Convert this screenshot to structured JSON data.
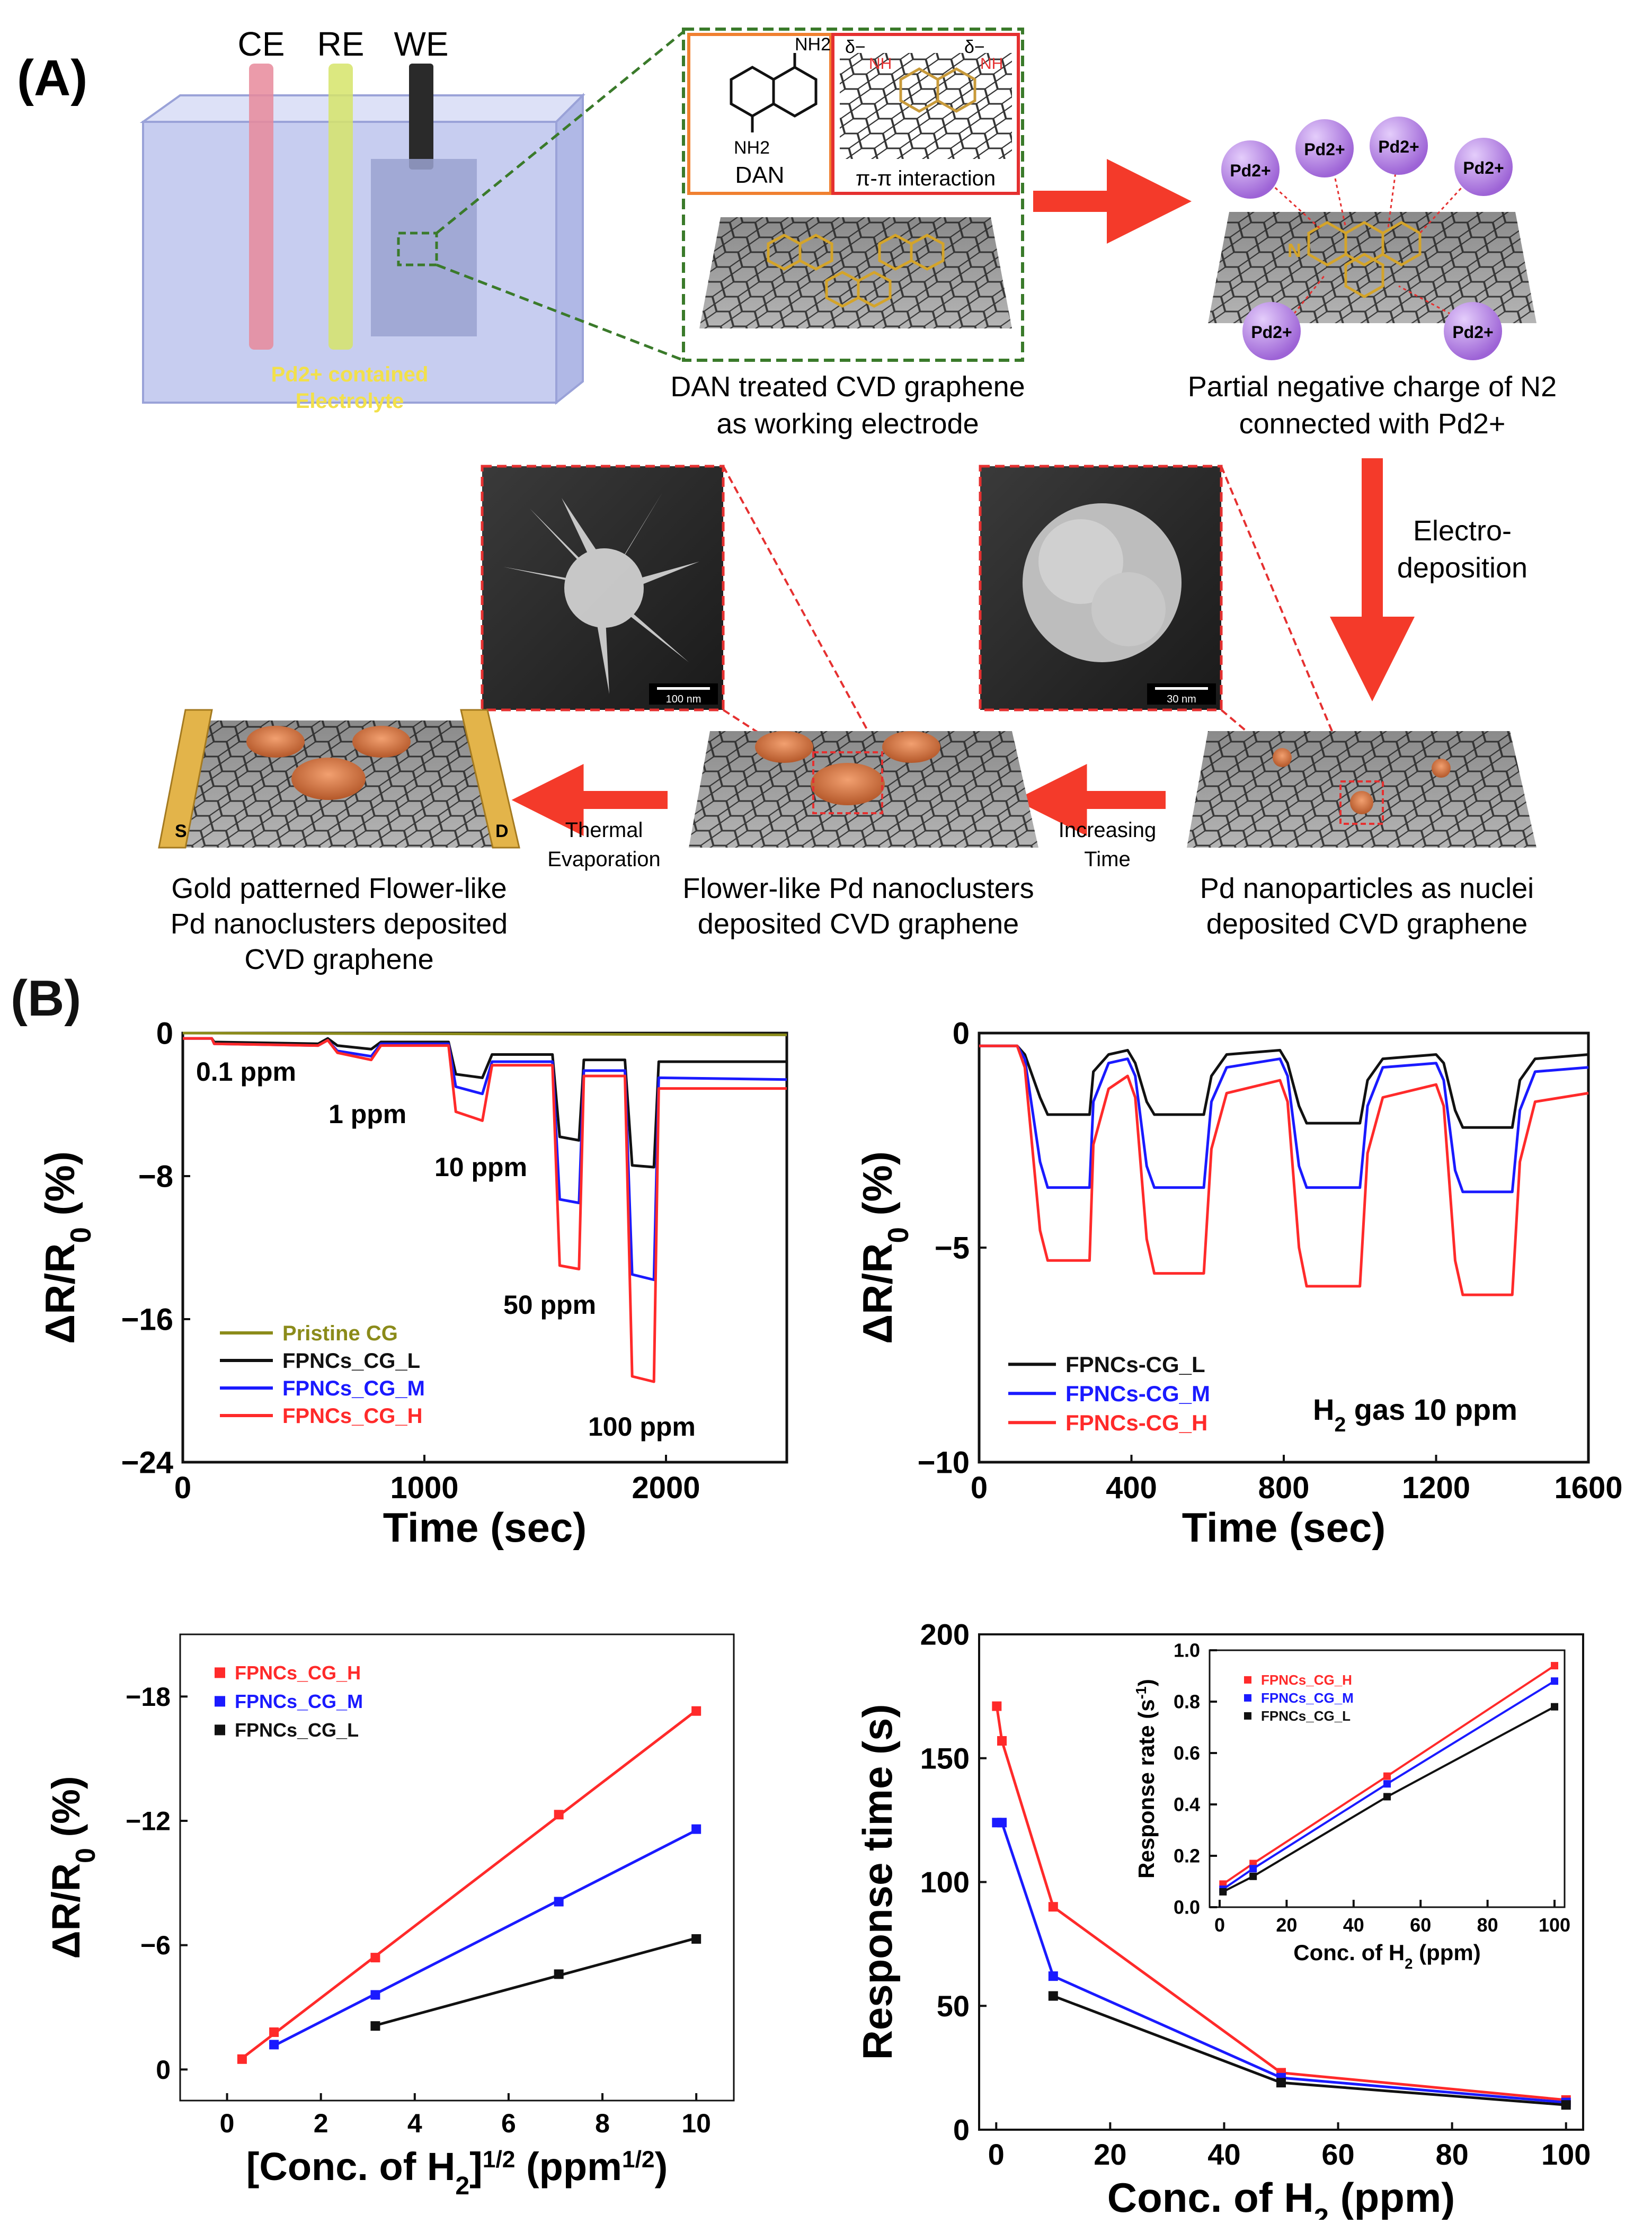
{
  "panel_a": {
    "label": "(A)",
    "cell": {
      "electrodes": [
        "CE",
        "RE",
        "WE"
      ],
      "electrolyte_line1": "Pd2+ contained",
      "electrolyte_line2": "Electrolyte"
    },
    "dan": {
      "molecule_label": "DAN",
      "nh2_label": "NH2",
      "interaction_label": "π-π interaction",
      "delta_label": "δ−",
      "nh_label": "NH"
    },
    "pd_ion_label": "Pd2+",
    "n_label": "N",
    "captions": {
      "dan_graphene_line1": "DAN treated CVD graphene",
      "dan_graphene_line2": "as working electrode",
      "partial_charge_line1": "Partial negative charge of N2",
      "partial_charge_line2": "connected with Pd2+",
      "electrodeposition_line1": "Electro-",
      "electrodeposition_line2": "deposition",
      "increasing_time_line1": "Increasing",
      "increasing_time_line2": "Time",
      "thermal_evap_line1": "Thermal",
      "thermal_evap_line2": "Evaporation",
      "gold_line1": "Gold patterned Flower-like",
      "gold_line2": "Pd nanoclusters deposited",
      "gold_line3": "CVD graphene",
      "flower_line1": "Flower-like Pd nanoclusters",
      "flower_line2": "deposited CVD graphene",
      "nuclei_line1": "Pd nanoparticles as nuclei",
      "nuclei_line2": "deposited CVD graphene"
    },
    "sem_scalebars": [
      "100 nm",
      "30 nm"
    ],
    "electrode_labels": [
      "S",
      "D"
    ]
  },
  "panel_b": {
    "label": "(B)"
  },
  "colors": {
    "red": "#ff2a2a",
    "blue": "#1a1aff",
    "black": "#111111",
    "olive": "#8b8b1a",
    "arrow_red": "#f43a2a",
    "green_dash": "#3a7a2a",
    "gold": "#e3b44a",
    "pd_purple": "#b080e0"
  },
  "chart_data": [
    {
      "type": "line",
      "ylabel": "ΔR/R0 (%)",
      "xlabel": "Time (sec)",
      "xlim": [
        0,
        2500
      ],
      "ylim": [
        -24,
        0
      ],
      "xticks": [
        0,
        1000,
        2000
      ],
      "yticks": [
        0,
        -8,
        -16,
        -24
      ],
      "annotations": [
        "0.1 ppm",
        "1 ppm",
        "10 ppm",
        "50 ppm",
        "100 ppm"
      ],
      "series": [
        {
          "name": "Pristine CG",
          "color": "#8b8b1a",
          "points": [
            [
              0,
              0
            ],
            [
              2500,
              -0.1
            ]
          ]
        },
        {
          "name": "FPNCs_CG_L",
          "color": "#111111",
          "points": [
            [
              0,
              -0.3
            ],
            [
              120,
              -0.3
            ],
            [
              130,
              -0.5
            ],
            [
              560,
              -0.6
            ],
            [
              600,
              -0.3
            ],
            [
              640,
              -0.7
            ],
            [
              780,
              -0.9
            ],
            [
              820,
              -0.5
            ],
            [
              1100,
              -0.5
            ],
            [
              1130,
              -2.3
            ],
            [
              1240,
              -2.5
            ],
            [
              1280,
              -1.2
            ],
            [
              1530,
              -1.2
            ],
            [
              1560,
              -5.8
            ],
            [
              1640,
              -6.0
            ],
            [
              1660,
              -1.5
            ],
            [
              1830,
              -1.5
            ],
            [
              1860,
              -7.4
            ],
            [
              1950,
              -7.5
            ],
            [
              1970,
              -1.6
            ],
            [
              2500,
              -1.6
            ]
          ]
        },
        {
          "name": "FPNCs_CG_M",
          "color": "#1a1aff",
          "points": [
            [
              0,
              -0.3
            ],
            [
              120,
              -0.3
            ],
            [
              130,
              -0.6
            ],
            [
              560,
              -0.7
            ],
            [
              600,
              -0.4
            ],
            [
              640,
              -1.0
            ],
            [
              780,
              -1.3
            ],
            [
              820,
              -0.6
            ],
            [
              1100,
              -0.6
            ],
            [
              1130,
              -3.0
            ],
            [
              1240,
              -3.4
            ],
            [
              1280,
              -1.6
            ],
            [
              1530,
              -1.6
            ],
            [
              1560,
              -9.3
            ],
            [
              1640,
              -9.5
            ],
            [
              1660,
              -2.1
            ],
            [
              1830,
              -2.1
            ],
            [
              1860,
              -13.5
            ],
            [
              1950,
              -13.8
            ],
            [
              1970,
              -2.5
            ],
            [
              2500,
              -2.6
            ]
          ]
        },
        {
          "name": "FPNCs_CG_H",
          "color": "#ff2a2a",
          "points": [
            [
              0,
              -0.3
            ],
            [
              120,
              -0.3
            ],
            [
              130,
              -0.6
            ],
            [
              560,
              -0.7
            ],
            [
              600,
              -0.4
            ],
            [
              640,
              -1.1
            ],
            [
              780,
              -1.5
            ],
            [
              820,
              -0.7
            ],
            [
              1100,
              -0.7
            ],
            [
              1130,
              -4.4
            ],
            [
              1240,
              -4.9
            ],
            [
              1280,
              -1.8
            ],
            [
              1530,
              -1.8
            ],
            [
              1560,
              -13.0
            ],
            [
              1640,
              -13.2
            ],
            [
              1660,
              -2.4
            ],
            [
              1830,
              -2.4
            ],
            [
              1860,
              -19.2
            ],
            [
              1950,
              -19.5
            ],
            [
              1970,
              -3.1
            ],
            [
              2500,
              -3.1
            ]
          ]
        }
      ]
    },
    {
      "type": "line",
      "ylabel": "ΔR/R0 (%)",
      "xlabel": "Time (sec)",
      "xlim": [
        0,
        1600
      ],
      "ylim": [
        -10,
        0
      ],
      "xticks": [
        0,
        400,
        800,
        1200,
        1600
      ],
      "yticks": [
        0,
        -5,
        -10
      ],
      "annotation": "H2 gas 10 ppm",
      "series": [
        {
          "name": "FPNCs-CG_L",
          "color": "#111111",
          "points": [
            [
              0,
              -0.3
            ],
            [
              100,
              -0.3
            ],
            [
              120,
              -0.5
            ],
            [
              160,
              -1.5
            ],
            [
              180,
              -1.9
            ],
            [
              290,
              -1.9
            ],
            [
              300,
              -0.9
            ],
            [
              340,
              -0.5
            ],
            [
              390,
              -0.4
            ],
            [
              410,
              -0.7
            ],
            [
              440,
              -1.6
            ],
            [
              460,
              -1.9
            ],
            [
              590,
              -1.9
            ],
            [
              610,
              -1.0
            ],
            [
              650,
              -0.5
            ],
            [
              790,
              -0.4
            ],
            [
              810,
              -0.7
            ],
            [
              840,
              -1.7
            ],
            [
              860,
              -2.1
            ],
            [
              1000,
              -2.1
            ],
            [
              1020,
              -1.1
            ],
            [
              1060,
              -0.6
            ],
            [
              1200,
              -0.5
            ],
            [
              1220,
              -0.7
            ],
            [
              1250,
              -1.8
            ],
            [
              1270,
              -2.2
            ],
            [
              1400,
              -2.2
            ],
            [
              1420,
              -1.1
            ],
            [
              1460,
              -0.6
            ],
            [
              1600,
              -0.5
            ]
          ]
        },
        {
          "name": "FPNCs-CG_M",
          "color": "#1a1aff",
          "points": [
            [
              0,
              -0.3
            ],
            [
              100,
              -0.3
            ],
            [
              120,
              -0.6
            ],
            [
              160,
              -3.0
            ],
            [
              180,
              -3.6
            ],
            [
              290,
              -3.6
            ],
            [
              300,
              -1.6
            ],
            [
              340,
              -0.7
            ],
            [
              390,
              -0.6
            ],
            [
              410,
              -1.0
            ],
            [
              440,
              -3.1
            ],
            [
              460,
              -3.6
            ],
            [
              590,
              -3.6
            ],
            [
              610,
              -1.6
            ],
            [
              650,
              -0.8
            ],
            [
              790,
              -0.6
            ],
            [
              810,
              -1.0
            ],
            [
              840,
              -3.1
            ],
            [
              860,
              -3.6
            ],
            [
              1000,
              -3.6
            ],
            [
              1020,
              -1.7
            ],
            [
              1060,
              -0.8
            ],
            [
              1200,
              -0.7
            ],
            [
              1220,
              -1.1
            ],
            [
              1250,
              -3.2
            ],
            [
              1270,
              -3.7
            ],
            [
              1400,
              -3.7
            ],
            [
              1420,
              -1.8
            ],
            [
              1460,
              -0.9
            ],
            [
              1600,
              -0.8
            ]
          ]
        },
        {
          "name": "FPNCs-CG_H",
          "color": "#ff2a2a",
          "points": [
            [
              0,
              -0.3
            ],
            [
              100,
              -0.3
            ],
            [
              120,
              -0.8
            ],
            [
              160,
              -4.6
            ],
            [
              180,
              -5.3
            ],
            [
              290,
              -5.3
            ],
            [
              300,
              -2.6
            ],
            [
              340,
              -1.3
            ],
            [
              390,
              -1.0
            ],
            [
              410,
              -1.5
            ],
            [
              440,
              -4.8
            ],
            [
              460,
              -5.6
            ],
            [
              590,
              -5.6
            ],
            [
              610,
              -2.7
            ],
            [
              650,
              -1.4
            ],
            [
              790,
              -1.1
            ],
            [
              810,
              -1.6
            ],
            [
              840,
              -5.0
            ],
            [
              860,
              -5.9
            ],
            [
              1000,
              -5.9
            ],
            [
              1020,
              -2.8
            ],
            [
              1060,
              -1.5
            ],
            [
              1200,
              -1.2
            ],
            [
              1220,
              -1.7
            ],
            [
              1250,
              -5.3
            ],
            [
              1270,
              -6.1
            ],
            [
              1400,
              -6.1
            ],
            [
              1420,
              -3.0
            ],
            [
              1460,
              -1.6
            ],
            [
              1600,
              -1.4
            ]
          ]
        }
      ]
    },
    {
      "type": "scatter",
      "ylabel": "ΔR/R0 (%)",
      "xlabel": "[Conc. of H2]1/2 (ppm1/2)",
      "xlim": [
        -1,
        10.8
      ],
      "ylim": [
        1.5,
        -21
      ],
      "xticks": [
        0,
        2,
        4,
        6,
        8,
        10
      ],
      "yticks": [
        0,
        -6,
        -12,
        -18
      ],
      "series": [
        {
          "name": "FPNCs_CG_H",
          "color": "#ff2a2a",
          "points": [
            [
              0.32,
              -0.5
            ],
            [
              1.0,
              -1.8
            ],
            [
              3.16,
              -5.4
            ],
            [
              7.07,
              -12.3
            ],
            [
              10.0,
              -17.3
            ]
          ]
        },
        {
          "name": "FPNCs_CG_M",
          "color": "#1a1aff",
          "points": [
            [
              1.0,
              -1.2
            ],
            [
              3.16,
              -3.6
            ],
            [
              7.07,
              -8.1
            ],
            [
              10.0,
              -11.6
            ]
          ]
        },
        {
          "name": "FPNCs_CG_L",
          "color": "#111111",
          "points": [
            [
              3.16,
              -2.1
            ],
            [
              7.07,
              -4.6
            ],
            [
              10.0,
              -6.3
            ]
          ]
        }
      ]
    },
    {
      "type": "line",
      "ylabel": "Response time (s)",
      "xlabel": "Conc. of H2 (ppm)",
      "xlim": [
        -3,
        103
      ],
      "ylim": [
        0,
        200
      ],
      "xticks": [
        0,
        20,
        40,
        60,
        80,
        100
      ],
      "yticks": [
        0,
        50,
        100,
        150,
        200
      ],
      "series": [
        {
          "name": "FPNCs_CG_H",
          "color": "#ff2a2a",
          "points": [
            [
              0.1,
              171
            ],
            [
              1,
              157
            ],
            [
              10,
              90
            ],
            [
              50,
              23
            ],
            [
              100,
              12
            ]
          ]
        },
        {
          "name": "FPNCs_CG_M",
          "color": "#1a1aff",
          "points": [
            [
              0.1,
              124
            ],
            [
              1,
              124
            ],
            [
              10,
              62
            ],
            [
              50,
              21
            ],
            [
              100,
              11
            ]
          ]
        },
        {
          "name": "FPNCs_CG_L",
          "color": "#111111",
          "points": [
            [
              10,
              54
            ],
            [
              50,
              19
            ],
            [
              100,
              10
            ]
          ]
        }
      ],
      "inset": {
        "type": "line",
        "ylabel": "Response rate (s-1)",
        "xlabel": "Conc. of H2 (ppm)",
        "xlim": [
          -3,
          103
        ],
        "ylim": [
          0,
          1.0
        ],
        "xticks": [
          0,
          20,
          40,
          60,
          80,
          100
        ],
        "yticks": [
          0.0,
          0.2,
          0.4,
          0.6,
          0.8,
          1.0
        ],
        "series": [
          {
            "name": "FPNCs_CG_H",
            "color": "#ff2a2a",
            "points": [
              [
                1,
                0.09
              ],
              [
                10,
                0.17
              ],
              [
                50,
                0.51
              ],
              [
                100,
                0.94
              ]
            ]
          },
          {
            "name": "FPNCs_CG_M",
            "color": "#1a1aff",
            "points": [
              [
                1,
                0.07
              ],
              [
                10,
                0.15
              ],
              [
                50,
                0.48
              ],
              [
                100,
                0.88
              ]
            ]
          },
          {
            "name": "FPNCs_CG_L",
            "color": "#111111",
            "points": [
              [
                1,
                0.06
              ],
              [
                10,
                0.12
              ],
              [
                50,
                0.43
              ],
              [
                100,
                0.78
              ]
            ]
          }
        ]
      }
    }
  ]
}
